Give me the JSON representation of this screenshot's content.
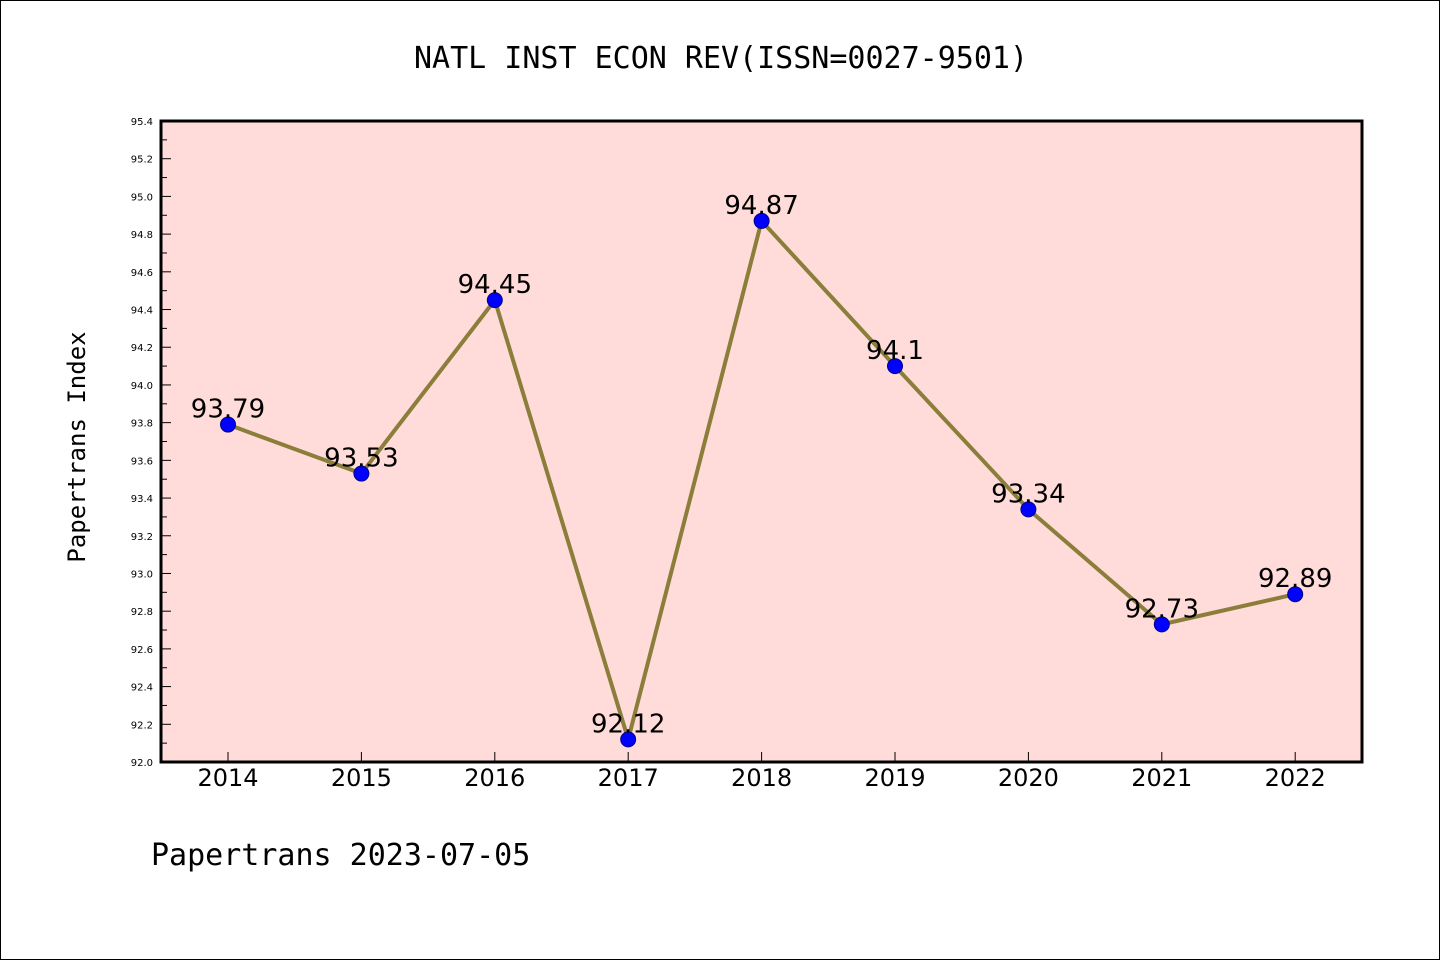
{
  "chart_data": {
    "type": "line",
    "title": "NATL INST ECON REV(ISSN=0027-9501)",
    "xlabel": "",
    "ylabel": "Papertrans Index",
    "categories": [
      "2014",
      "2015",
      "2016",
      "2017",
      "2018",
      "2019",
      "2020",
      "2021",
      "2022"
    ],
    "values": [
      93.79,
      93.53,
      94.45,
      92.12,
      94.87,
      94.1,
      93.34,
      92.73,
      92.89
    ],
    "value_labels": [
      "93.79",
      "93.53",
      "94.45",
      "92.12",
      "94.87",
      "94.1",
      "93.34",
      "92.73",
      "92.89"
    ],
    "ylim": [
      92.0,
      95.4
    ],
    "yticks": [
      "92.0",
      "92.2",
      "92.4",
      "92.6",
      "92.8",
      "93.0",
      "93.2",
      "93.4",
      "93.6",
      "93.8",
      "94.0",
      "94.2",
      "94.4",
      "94.6",
      "94.8",
      "95.0",
      "95.2",
      "95.4"
    ],
    "grid": false,
    "colors": {
      "plot_background": "#FFDCDA",
      "line": "#8B7D3A",
      "marker": "#0000FF"
    },
    "footer": "Papertrans 2023-07-05"
  }
}
